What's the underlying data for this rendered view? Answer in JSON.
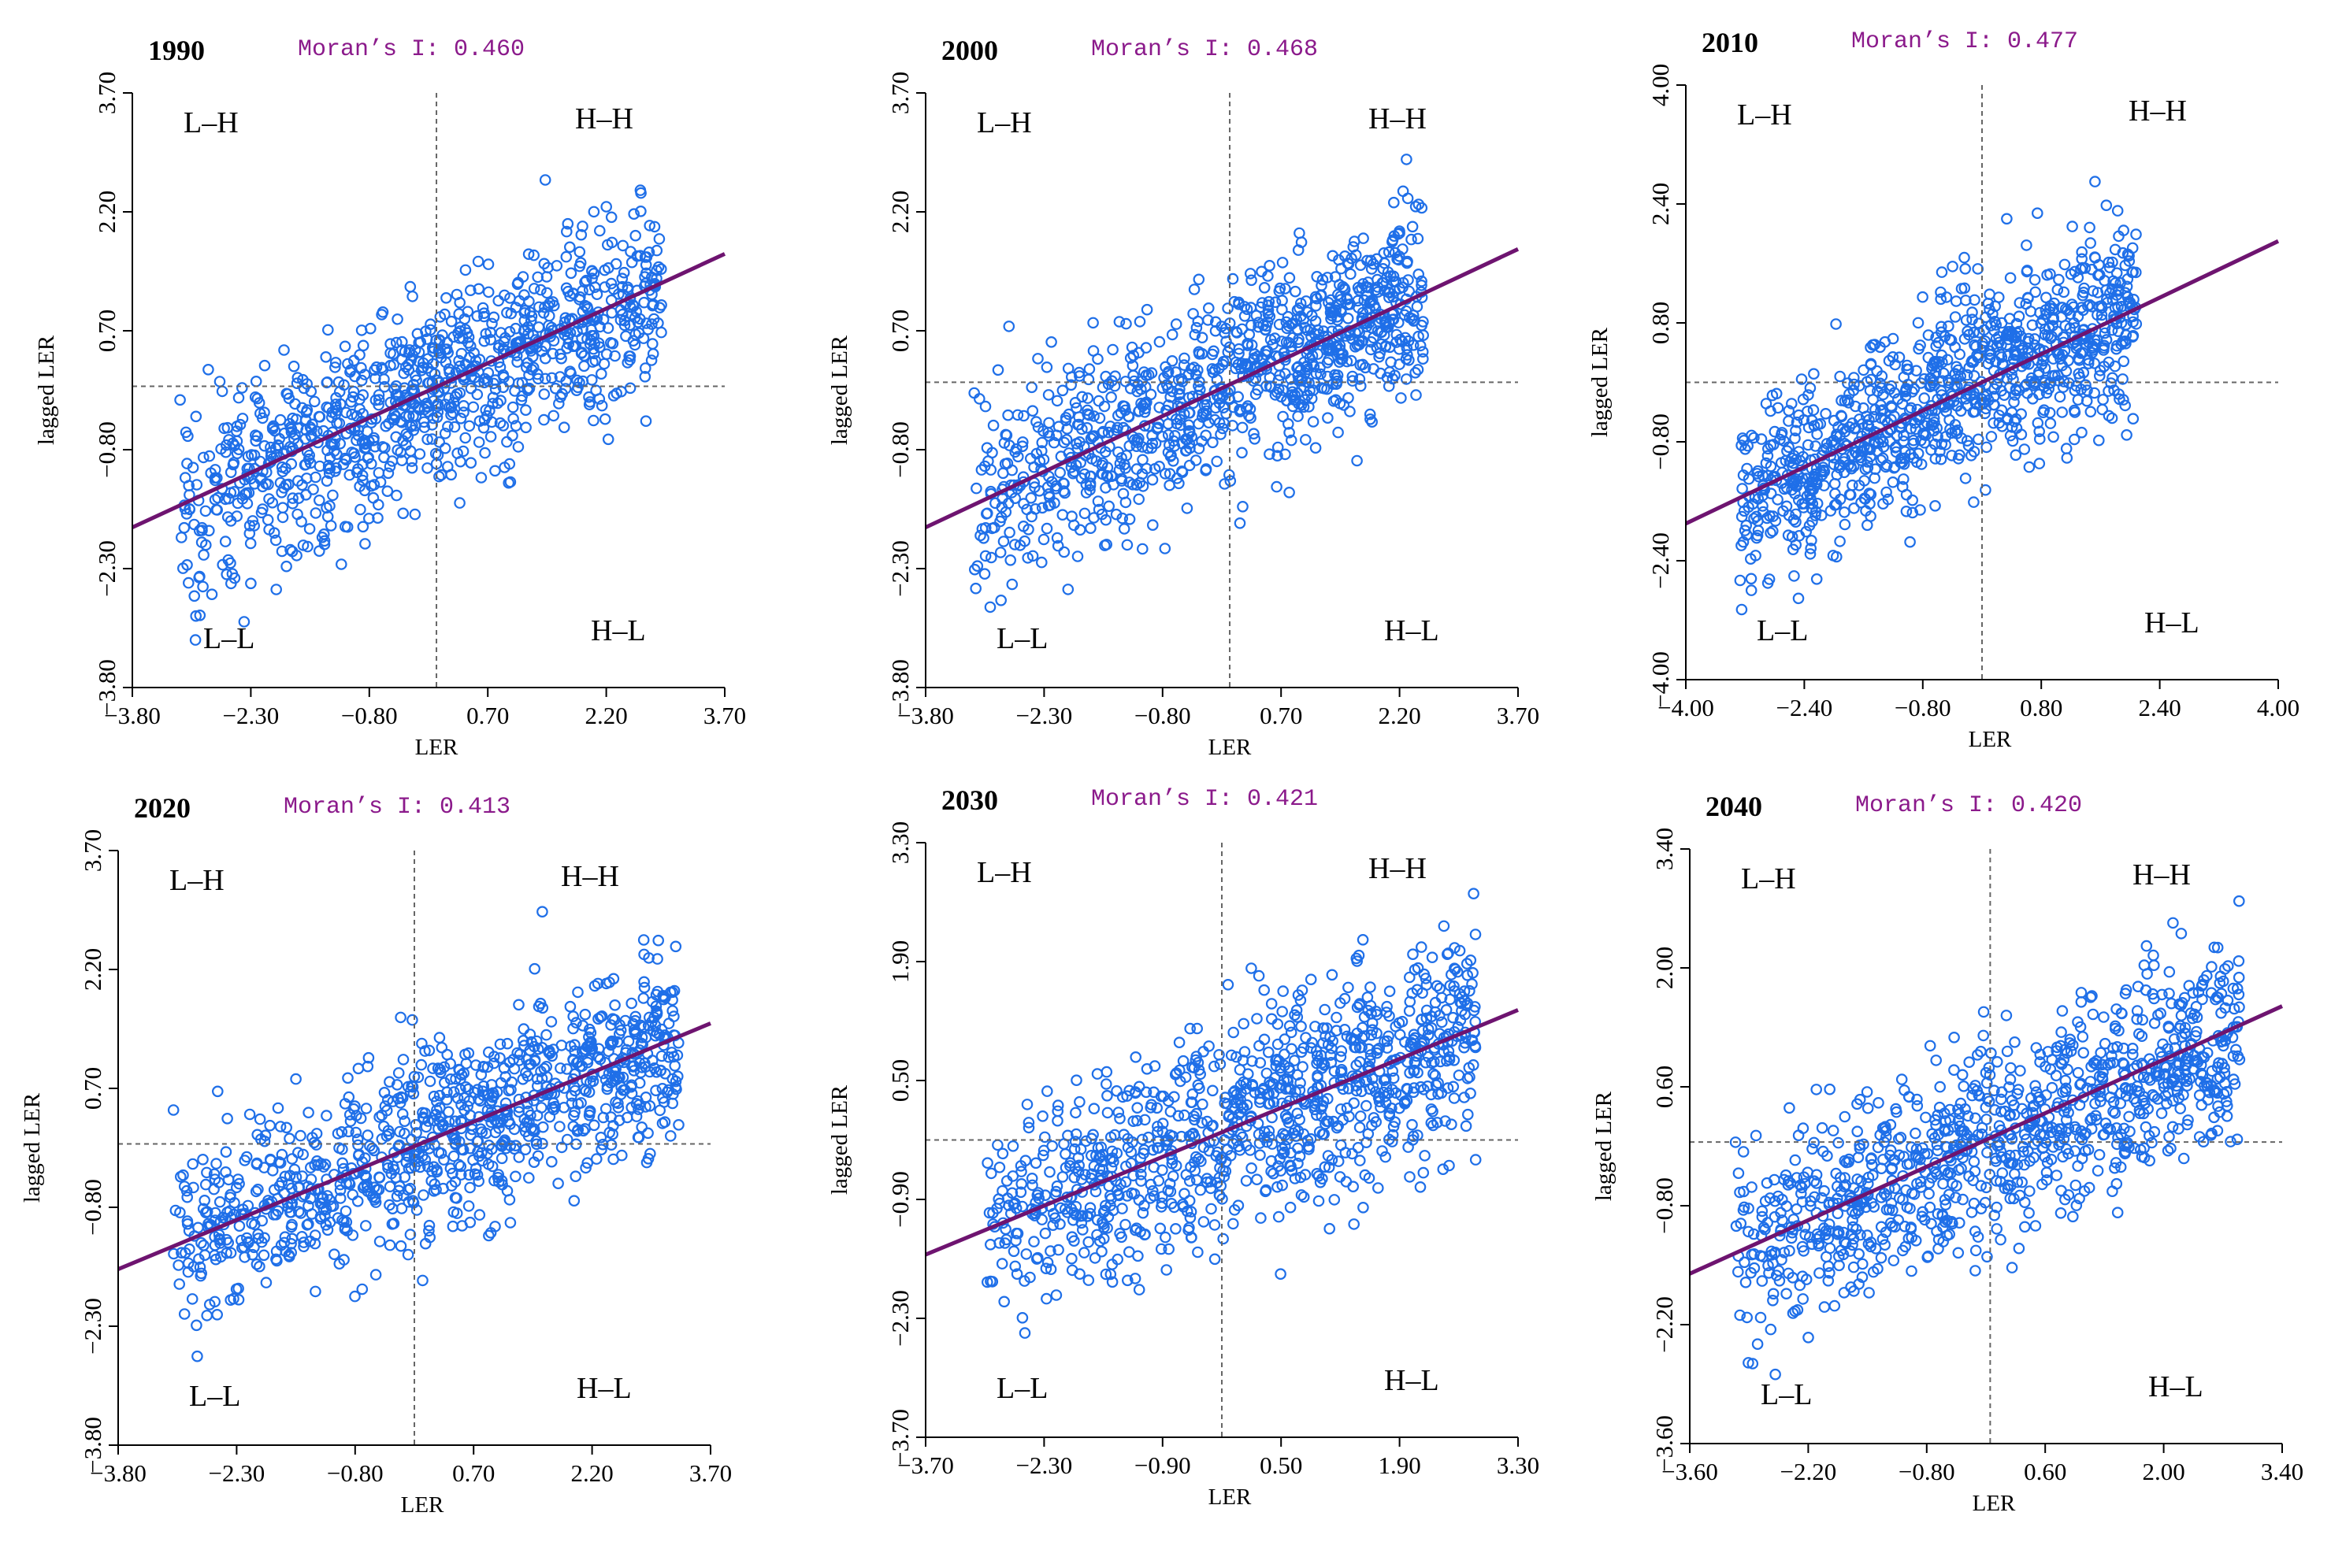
{
  "figure_title": "",
  "colors": {
    "points": "#1F6FE8",
    "fit_line": "#6E1470",
    "moran_text": "#8B1A8B",
    "reference_lines": "#666666",
    "axis": "#000000"
  },
  "quadrant_labels": {
    "upper_left": "L–H",
    "upper_right": "H–H",
    "lower_left": "L–L",
    "lower_right": "H–L"
  },
  "chart_data": [
    {
      "type": "scatter",
      "year": "1990",
      "moran_label": "Moran’s I: 0.460",
      "moran_i": 0.46,
      "xlabel": "LER",
      "ylabel": "lagged LER",
      "xlim": [
        -3.8,
        3.7
      ],
      "ylim": [
        -3.8,
        3.7
      ],
      "xticks": [
        "−3.80",
        "−2.30",
        "−0.80",
        "0.70",
        "2.20",
        "3.70"
      ],
      "yticks": [
        "−3.80",
        "−2.30",
        "−0.80",
        "0.70",
        "2.20",
        "3.70"
      ],
      "tick_values": [
        -3.8,
        -2.3,
        -0.8,
        0.7,
        2.2,
        3.7
      ],
      "ref_x": 0.05,
      "ref_y": 0.0,
      "fit_line": {
        "x": [
          -3.8,
          3.7
        ],
        "y": [
          -1.78,
          1.67
        ]
      },
      "cloud": {
        "n": 1000,
        "x_range": [
          -3.2,
          2.9
        ],
        "slope": 0.46,
        "intercept": -0.08,
        "noise": 0.6,
        "seed": 1990
      },
      "grid": false
    },
    {
      "type": "scatter",
      "year": "2000",
      "moran_label": "Moran’s I: 0.468",
      "moran_i": 0.468,
      "xlabel": "LER",
      "ylabel": "lagged LER",
      "xlim": [
        -3.8,
        3.7
      ],
      "ylim": [
        -3.8,
        3.7
      ],
      "xticks": [
        "−3.80",
        "−2.30",
        "−0.80",
        "0.70",
        "2.20",
        "3.70"
      ],
      "yticks": [
        "−3.80",
        "−2.30",
        "−0.80",
        "0.70",
        "2.20",
        "3.70"
      ],
      "tick_values": [
        -3.8,
        -2.3,
        -0.8,
        0.7,
        2.2,
        3.7
      ],
      "ref_x": 0.05,
      "ref_y": 0.05,
      "fit_line": {
        "x": [
          -3.8,
          3.7
        ],
        "y": [
          -1.78,
          1.73
        ]
      },
      "cloud": {
        "n": 1000,
        "x_range": [
          -3.2,
          2.5
        ],
        "slope": 0.47,
        "intercept": 0.0,
        "noise": 0.6,
        "seed": 2000
      },
      "grid": false
    },
    {
      "type": "scatter",
      "year": "2010",
      "moran_label": "Moran’s I: 0.477",
      "moran_i": 0.477,
      "xlabel": "LER",
      "ylabel": "lagged LER",
      "xlim": [
        -4.0,
        4.0
      ],
      "ylim": [
        -4.0,
        4.0
      ],
      "xticks": [
        "−4.00",
        "−2.40",
        "−0.80",
        "0.80",
        "2.40",
        "4.00"
      ],
      "yticks": [
        "−4.00",
        "−2.40",
        "−0.80",
        "0.80",
        "2.40",
        "4.00"
      ],
      "tick_values": [
        -4.0,
        -2.4,
        -0.8,
        0.8,
        2.4,
        4.0
      ],
      "ref_x": 0.0,
      "ref_y": 0.0,
      "fit_line": {
        "x": [
          -4.0,
          4.0
        ],
        "y": [
          -1.9,
          1.9
        ]
      },
      "cloud": {
        "n": 1000,
        "x_range": [
          -3.3,
          2.1
        ],
        "slope": 0.48,
        "intercept": 0.0,
        "noise": 0.62,
        "seed": 2010
      },
      "grid": false
    },
    {
      "type": "scatter",
      "year": "2020",
      "moran_label": "Moran’s I: 0.413",
      "moran_i": 0.413,
      "xlabel": "LER",
      "ylabel": "lagged LER",
      "xlim": [
        -3.8,
        3.7
      ],
      "ylim": [
        -3.8,
        3.7
      ],
      "xticks": [
        "−3.80",
        "−2.30",
        "−0.80",
        "0.70",
        "2.20",
        "3.70"
      ],
      "yticks": [
        "−3.80",
        "−2.30",
        "−0.80",
        "0.70",
        "2.20",
        "3.70"
      ],
      "tick_values": [
        -3.8,
        -2.3,
        -0.8,
        0.7,
        2.2,
        3.7
      ],
      "ref_x": -0.05,
      "ref_y": 0.0,
      "fit_line": {
        "x": [
          -3.8,
          3.7
        ],
        "y": [
          -1.58,
          1.52
        ]
      },
      "cloud": {
        "n": 1000,
        "x_range": [
          -3.1,
          3.3
        ],
        "slope": 0.41,
        "intercept": -0.02,
        "noise": 0.58,
        "seed": 2020
      },
      "grid": false
    },
    {
      "type": "scatter",
      "year": "2030",
      "moran_label": "Moran’s I: 0.421",
      "moran_i": 0.421,
      "xlabel": "LER",
      "ylabel": "lagged LER",
      "xlim": [
        -3.7,
        3.3
      ],
      "ylim": [
        -3.7,
        3.3
      ],
      "xticks": [
        "−3.70",
        "−2.30",
        "−0.90",
        "0.50",
        "1.90",
        "3.30"
      ],
      "yticks": [
        "−3.70",
        "−2.30",
        "−0.90",
        "0.50",
        "1.90",
        "3.30"
      ],
      "tick_values": [
        -3.7,
        -2.3,
        -0.9,
        0.5,
        1.9,
        3.3
      ],
      "ref_x": -0.2,
      "ref_y": -0.2,
      "fit_line": {
        "x": [
          -3.7,
          3.3
        ],
        "y": [
          -1.55,
          1.33
        ]
      },
      "cloud": {
        "n": 1000,
        "x_range": [
          -3.0,
          2.8
        ],
        "slope": 0.42,
        "intercept": 0.0,
        "noise": 0.6,
        "seed": 2030
      },
      "grid": false
    },
    {
      "type": "scatter",
      "year": "2040",
      "moran_label": "Moran’s I: 0.420",
      "moran_i": 0.42,
      "xlabel": "LER",
      "ylabel": "lagged LER",
      "xlim": [
        -3.6,
        3.4
      ],
      "ylim": [
        -3.6,
        3.4
      ],
      "xticks": [
        "−3.60",
        "−2.20",
        "−0.80",
        "0.60",
        "2.00",
        "3.40"
      ],
      "yticks": [
        "−3.60",
        "−2.20",
        "−0.80",
        "0.60",
        "2.00",
        "3.40"
      ],
      "tick_values": [
        -3.6,
        -2.2,
        -0.8,
        0.6,
        2.0,
        3.4
      ],
      "ref_x": -0.05,
      "ref_y": -0.05,
      "fit_line": {
        "x": [
          -3.6,
          3.4
        ],
        "y": [
          -1.6,
          1.55
        ]
      },
      "cloud": {
        "n": 1000,
        "x_range": [
          -3.1,
          2.9
        ],
        "slope": 0.42,
        "intercept": 0.0,
        "noise": 0.6,
        "seed": 2040
      },
      "grid": false
    }
  ]
}
